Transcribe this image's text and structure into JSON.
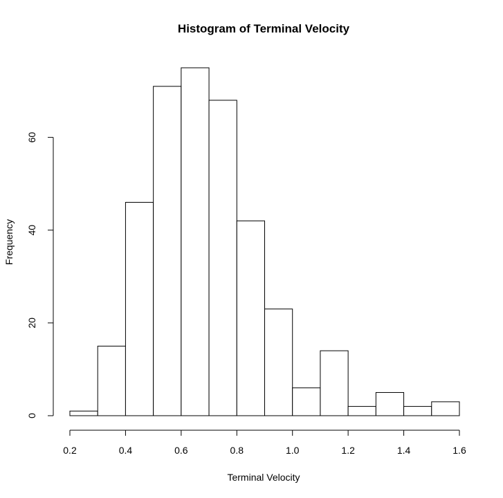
{
  "chart_data": {
    "type": "bar",
    "title": "Histogram of Terminal Velocity",
    "xlabel": "Terminal Velocity",
    "ylabel": "Frequency",
    "bins": [
      {
        "start": 0.2,
        "end": 0.3,
        "count": 1
      },
      {
        "start": 0.3,
        "end": 0.4,
        "count": 15
      },
      {
        "start": 0.4,
        "end": 0.5,
        "count": 46
      },
      {
        "start": 0.5,
        "end": 0.6,
        "count": 71
      },
      {
        "start": 0.6,
        "end": 0.7,
        "count": 75
      },
      {
        "start": 0.7,
        "end": 0.8,
        "count": 68
      },
      {
        "start": 0.8,
        "end": 0.9,
        "count": 42
      },
      {
        "start": 0.9,
        "end": 1.0,
        "count": 23
      },
      {
        "start": 1.0,
        "end": 1.1,
        "count": 6
      },
      {
        "start": 1.1,
        "end": 1.2,
        "count": 14
      },
      {
        "start": 1.2,
        "end": 1.3,
        "count": 2
      },
      {
        "start": 1.3,
        "end": 1.4,
        "count": 5
      },
      {
        "start": 1.4,
        "end": 1.5,
        "count": 2
      },
      {
        "start": 1.5,
        "end": 1.6,
        "count": 3
      }
    ],
    "xlim": [
      0.2,
      1.6
    ],
    "ylim": [
      0,
      75
    ],
    "x_ticks": [
      0.2,
      0.4,
      0.6,
      0.8,
      1.0,
      1.2,
      1.4,
      1.6
    ],
    "x_tick_labels": [
      "0.2",
      "0.4",
      "0.6",
      "0.8",
      "1.0",
      "1.2",
      "1.4",
      "1.6"
    ],
    "y_ticks": [
      0,
      20,
      40,
      60
    ],
    "y_tick_labels": [
      "0",
      "20",
      "40",
      "60"
    ],
    "grid": false,
    "bar_fill": "#ffffff",
    "bar_stroke": "#000000"
  }
}
